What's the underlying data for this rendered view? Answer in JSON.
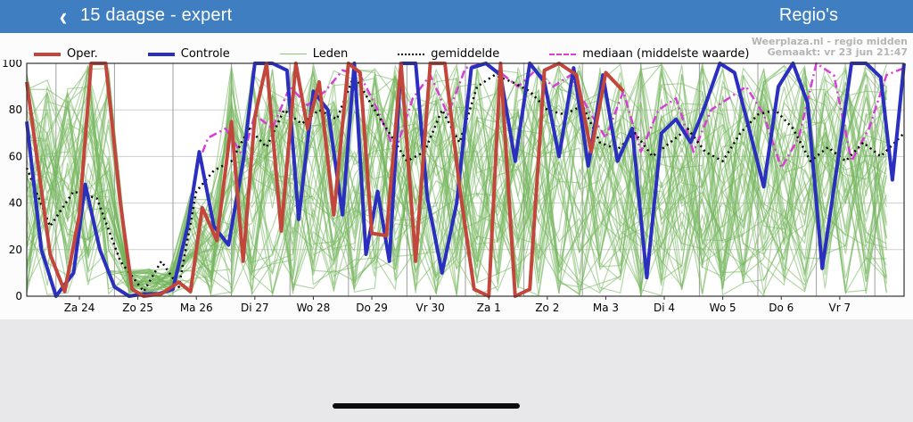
{
  "nav": {
    "back_icon": "‹",
    "title": "15 daagse - expert",
    "action": "Regio's",
    "bg_color": "#3e7ec1"
  },
  "chart": {
    "watermark": {
      "line1": "Weerplaza.nl - regio midden",
      "line2": "Gemaakt: vr 23 jun 21:47"
    },
    "legend": [
      {
        "label": "Oper.",
        "color": "#c2463c",
        "style": "solid"
      },
      {
        "label": "Controle",
        "color": "#2b2fc0",
        "style": "solid"
      },
      {
        "label": "Leden",
        "color": "#8cc57e",
        "style": "thin"
      },
      {
        "label": "gemiddelde",
        "color": "#000000",
        "style": "dotted"
      },
      {
        "label": "mediaan (middelste waarde)",
        "color": "#d63fd6",
        "style": "dashdot"
      }
    ]
  },
  "chart_data": {
    "type": "line",
    "title": "",
    "xlabel": "",
    "ylabel": "",
    "ylim": [
      0,
      100
    ],
    "yticks": [
      0,
      20,
      40,
      60,
      80,
      100
    ],
    "grid": true,
    "legend_position": "top",
    "x_categories": [
      "Za 24",
      "Zo 25",
      "Ma 26",
      "Di 27",
      "Wo 28",
      "Do 29",
      "Vr 30",
      "Za 1",
      "Zo 2",
      "Ma 3",
      "Di 4",
      "Wo 5",
      "Do 6",
      "Vr 7"
    ],
    "x_range": [
      -0.9,
      14.1
    ],
    "series": [
      {
        "name": "Oper.",
        "color": "#c2463c",
        "width": 4,
        "dash": null,
        "points": [
          [
            -0.9,
            92
          ],
          [
            -0.7,
            55
          ],
          [
            -0.5,
            18
          ],
          [
            -0.25,
            2
          ],
          [
            0,
            35
          ],
          [
            0.2,
            100
          ],
          [
            0.45,
            100
          ],
          [
            0.7,
            40
          ],
          [
            0.9,
            3
          ],
          [
            1.1,
            0
          ],
          [
            1.4,
            1
          ],
          [
            1.7,
            6
          ],
          [
            1.9,
            2
          ],
          [
            2.1,
            38
          ],
          [
            2.35,
            24
          ],
          [
            2.6,
            75
          ],
          [
            2.8,
            15
          ],
          [
            3,
            77
          ],
          [
            3.2,
            100
          ],
          [
            3.45,
            28
          ],
          [
            3.7,
            100
          ],
          [
            3.9,
            72
          ],
          [
            4.1,
            92
          ],
          [
            4.35,
            35
          ],
          [
            4.6,
            100
          ],
          [
            4.8,
            96
          ],
          [
            5,
            27
          ],
          [
            5.25,
            26
          ],
          [
            5.5,
            100
          ],
          [
            5.75,
            15
          ],
          [
            6,
            100
          ],
          [
            6.25,
            100
          ],
          [
            6.5,
            47
          ],
          [
            6.75,
            3
          ],
          [
            7,
            0
          ],
          [
            7.2,
            100
          ],
          [
            7.45,
            0
          ],
          [
            7.7,
            3
          ],
          [
            7.95,
            97
          ],
          [
            8.2,
            100
          ],
          [
            8.5,
            95
          ],
          [
            8.75,
            62
          ],
          [
            9,
            96
          ],
          [
            9.3,
            88
          ]
        ]
      },
      {
        "name": "Controle",
        "color": "#2b2fc0",
        "width": 4,
        "dash": null,
        "points": [
          [
            -0.9,
            75
          ],
          [
            -0.65,
            20
          ],
          [
            -0.4,
            0
          ],
          [
            -0.1,
            10
          ],
          [
            0.1,
            48
          ],
          [
            0.35,
            20
          ],
          [
            0.6,
            4
          ],
          [
            0.85,
            0
          ],
          [
            1.1,
            1
          ],
          [
            1.35,
            1
          ],
          [
            1.6,
            3
          ],
          [
            1.85,
            30
          ],
          [
            2.05,
            62
          ],
          [
            2.3,
            30
          ],
          [
            2.55,
            22
          ],
          [
            2.8,
            58
          ],
          [
            3,
            100
          ],
          [
            3.3,
            100
          ],
          [
            3.55,
            97
          ],
          [
            3.75,
            33
          ],
          [
            4,
            88
          ],
          [
            4.25,
            80
          ],
          [
            4.5,
            35
          ],
          [
            4.7,
            100
          ],
          [
            4.9,
            18
          ],
          [
            5.1,
            45
          ],
          [
            5.3,
            15
          ],
          [
            5.5,
            100
          ],
          [
            5.75,
            100
          ],
          [
            5.95,
            42
          ],
          [
            6.2,
            10
          ],
          [
            6.45,
            40
          ],
          [
            6.7,
            98
          ],
          [
            6.95,
            100
          ],
          [
            7.2,
            95
          ],
          [
            7.45,
            58
          ],
          [
            7.7,
            100
          ],
          [
            7.95,
            92
          ],
          [
            8.2,
            60
          ],
          [
            8.45,
            98
          ],
          [
            8.7,
            56
          ],
          [
            8.95,
            95
          ],
          [
            9.2,
            58
          ],
          [
            9.45,
            72
          ],
          [
            9.7,
            8
          ],
          [
            9.95,
            70
          ],
          [
            10.2,
            76
          ],
          [
            10.45,
            66
          ],
          [
            10.7,
            82
          ],
          [
            10.95,
            100
          ],
          [
            11.2,
            96
          ],
          [
            11.45,
            72
          ],
          [
            11.7,
            47
          ],
          [
            11.95,
            90
          ],
          [
            12.2,
            100
          ],
          [
            12.45,
            83
          ],
          [
            12.7,
            12
          ],
          [
            12.95,
            55
          ],
          [
            13.2,
            100
          ],
          [
            13.45,
            100
          ],
          [
            13.7,
            94
          ],
          [
            13.9,
            50
          ],
          [
            14.1,
            100
          ]
        ]
      },
      {
        "name": "gemiddelde",
        "color": "#000000",
        "width": 2.5,
        "dash": "2 4",
        "points": [
          [
            -0.9,
            55
          ],
          [
            -0.5,
            30
          ],
          [
            -0.1,
            45
          ],
          [
            0.3,
            42
          ],
          [
            0.7,
            15
          ],
          [
            1.1,
            2
          ],
          [
            1.4,
            15
          ],
          [
            1.7,
            4
          ],
          [
            2,
            45
          ],
          [
            2.3,
            54
          ],
          [
            2.6,
            58
          ],
          [
            2.9,
            72
          ],
          [
            3.2,
            64
          ],
          [
            3.5,
            80
          ],
          [
            3.8,
            74
          ],
          [
            4.1,
            80
          ],
          [
            4.4,
            76
          ],
          [
            4.7,
            95
          ],
          [
            5,
            82
          ],
          [
            5.3,
            70
          ],
          [
            5.6,
            58
          ],
          [
            5.9,
            62
          ],
          [
            6.2,
            80
          ],
          [
            6.5,
            66
          ],
          [
            6.8,
            90
          ],
          [
            7.1,
            95
          ],
          [
            7.4,
            92
          ],
          [
            7.7,
            88
          ],
          [
            8,
            80
          ],
          [
            8.3,
            78
          ],
          [
            8.6,
            82
          ],
          [
            8.9,
            66
          ],
          [
            9.2,
            63
          ],
          [
            9.5,
            70
          ],
          [
            9.8,
            60
          ],
          [
            10.1,
            66
          ],
          [
            10.4,
            72
          ],
          [
            10.7,
            62
          ],
          [
            11,
            58
          ],
          [
            11.3,
            70
          ],
          [
            11.6,
            78
          ],
          [
            11.9,
            80
          ],
          [
            12.2,
            72
          ],
          [
            12.5,
            58
          ],
          [
            12.8,
            64
          ],
          [
            13.1,
            58
          ],
          [
            13.4,
            66
          ],
          [
            13.7,
            60
          ],
          [
            14.1,
            70
          ]
        ]
      },
      {
        "name": "mediaan (middelste waarde)",
        "color": "#d63fd6",
        "width": 2.5,
        "dash": "9 4 2 4",
        "points": [
          [
            2,
            55
          ],
          [
            2.2,
            68
          ],
          [
            2.5,
            72
          ],
          [
            2.8,
            60
          ],
          [
            3,
            78
          ],
          [
            3.3,
            72
          ],
          [
            3.6,
            90
          ],
          [
            3.9,
            82
          ],
          [
            4.2,
            88
          ],
          [
            4.5,
            97
          ],
          [
            4.8,
            95
          ],
          [
            5.1,
            80
          ],
          [
            5.4,
            62
          ],
          [
            5.7,
            85
          ],
          [
            6,
            95
          ],
          [
            6.3,
            78
          ],
          [
            6.6,
            98
          ],
          [
            6.9,
            100
          ],
          [
            7.2,
            96
          ],
          [
            7.5,
            90
          ],
          [
            7.8,
            97
          ],
          [
            8.1,
            90
          ],
          [
            8.4,
            95
          ],
          [
            8.7,
            80
          ],
          [
            9,
            68
          ],
          [
            9.3,
            88
          ],
          [
            9.6,
            62
          ],
          [
            9.9,
            80
          ],
          [
            10.2,
            85
          ],
          [
            10.5,
            62
          ],
          [
            10.8,
            80
          ],
          [
            11.1,
            85
          ],
          [
            11.4,
            90
          ],
          [
            11.7,
            78
          ],
          [
            12,
            55
          ],
          [
            12.3,
            68
          ],
          [
            12.6,
            100
          ],
          [
            12.9,
            95
          ],
          [
            13.2,
            58
          ],
          [
            13.5,
            72
          ],
          [
            13.8,
            95
          ],
          [
            14.1,
            98
          ]
        ]
      }
    ],
    "members": {
      "name": "Leden",
      "count": 48,
      "seed": 13,
      "color": "rgba(116,182,92,0.55)",
      "width": 1.2,
      "low_band_x": [
        0.75,
        1.85
      ],
      "low_band_max": 12
    }
  }
}
